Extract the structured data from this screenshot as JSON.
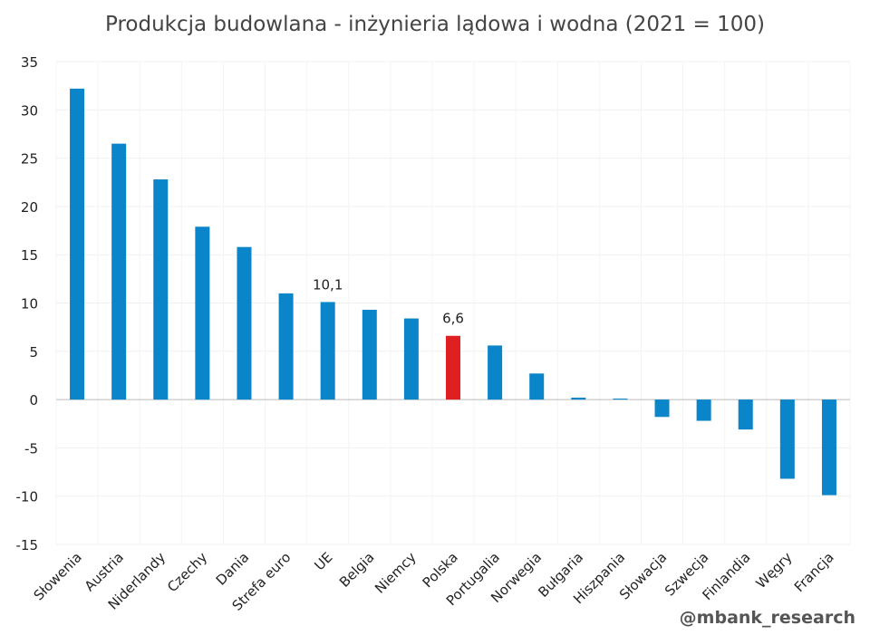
{
  "chart_data": {
    "type": "bar",
    "title": "Produkcja budowlana - inżynieria lądowa i wodna (2021 = 100)",
    "xlabel": "",
    "ylabel": "",
    "ylim": [
      -15,
      35
    ],
    "yticks": [
      35,
      30,
      25,
      20,
      15,
      10,
      5,
      0,
      -5,
      -10,
      -15
    ],
    "grid": true,
    "categories": [
      "Słowenia",
      "Austria",
      "Niderlandy",
      "Czechy",
      "Dania",
      "Strefa euro",
      "UE",
      "Belgia",
      "Niemcy",
      "Polska",
      "Portugalia",
      "Norwegia",
      "Bułgaria",
      "Hiszpania",
      "Słowacja",
      "Szwecja",
      "Finlandia",
      "Węgry",
      "Francja"
    ],
    "values": [
      32.2,
      26.5,
      22.8,
      17.9,
      15.8,
      11.0,
      10.1,
      9.3,
      8.4,
      6.6,
      5.6,
      2.7,
      0.2,
      0.1,
      -1.8,
      -2.2,
      -3.1,
      -8.2,
      -9.9
    ],
    "data_labels": [
      {
        "category": "UE",
        "text": "10,1"
      },
      {
        "category": "Polska",
        "text": "6,6"
      }
    ],
    "colors": {
      "default": "#0a85c9",
      "highlight": "#e02020"
    },
    "highlight": "Polska"
  },
  "credit": "@mbank_research"
}
